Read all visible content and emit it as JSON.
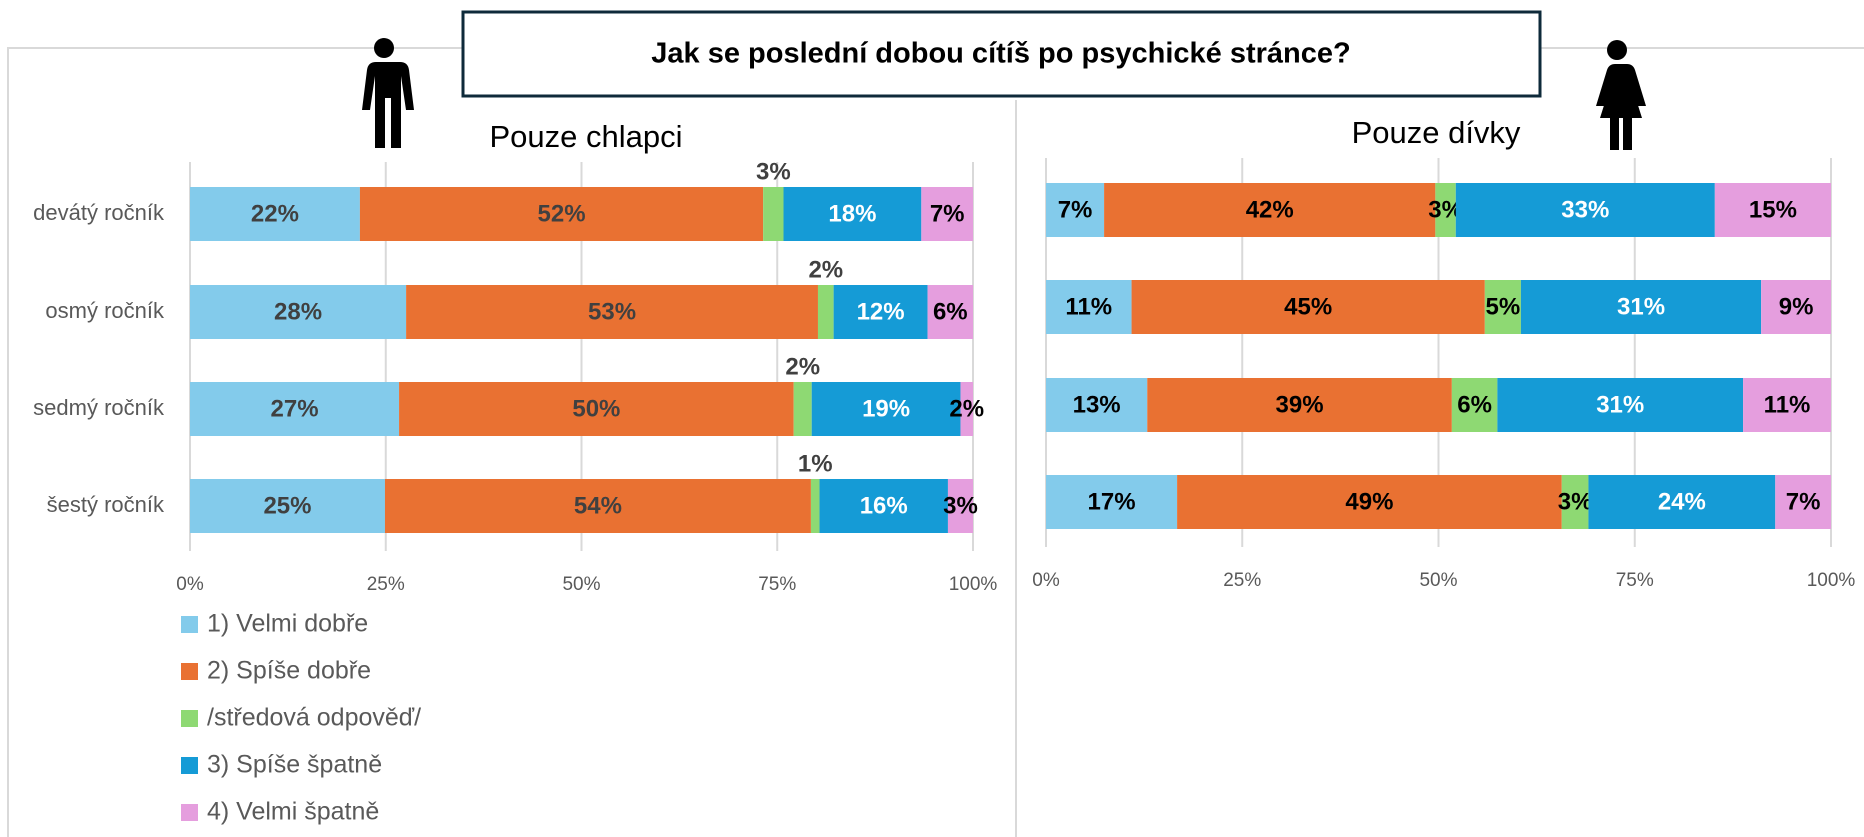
{
  "title": "Jak se poslední dobou cítíš po psychické stránce?",
  "chart_data": [
    {
      "type": "bar",
      "orientation": "horizontal",
      "stacked": true,
      "title": "Pouze chlapci",
      "categories": [
        "devátý ročník",
        "osmý ročník",
        "sedmý ročník",
        "šestý ročník"
      ],
      "series": [
        {
          "name": "1) Velmi dobře",
          "color": "#83cbeb",
          "values": [
            21.7,
            27.6,
            26.7,
            24.9
          ],
          "value_labels": [
            "22%",
            "28%",
            "27%",
            "25%"
          ]
        },
        {
          "name": "2) Spíše dobře",
          "color": "#e97132",
          "values": [
            51.5,
            52.6,
            50.4,
            54.4
          ],
          "value_labels": [
            "52%",
            "53%",
            "50%",
            "54%"
          ]
        },
        {
          "name": "/středová odpověď/",
          "color": "#8ed973",
          "values": [
            2.6,
            2.0,
            2.3,
            1.1
          ],
          "value_labels": [
            "3%",
            "2%",
            "2%",
            "1%"
          ]
        },
        {
          "name": "3) Spíše špatně",
          "color": "#159bd6",
          "values": [
            17.6,
            12.0,
            19.0,
            16.4
          ],
          "value_labels": [
            "18%",
            "12%",
            "19%",
            "16%"
          ]
        },
        {
          "name": "4) Velmi špatně",
          "color": "#e59ede",
          "values": [
            6.6,
            5.8,
            1.6,
            3.2
          ],
          "value_labels": [
            "7%",
            "6%",
            "2%",
            "3%"
          ]
        }
      ],
      "xlim": [
        0,
        100
      ],
      "xticks": [
        {
          "value": 0,
          "label": "0%"
        },
        {
          "value": 25,
          "label": "25%"
        },
        {
          "value": 50,
          "label": "50%"
        },
        {
          "value": 75,
          "label": "75%"
        },
        {
          "value": 100,
          "label": "100%"
        }
      ],
      "grid": true,
      "legend": "bottom-left"
    },
    {
      "type": "bar",
      "orientation": "horizontal",
      "stacked": true,
      "title": "Pouze dívky",
      "series": [
        {
          "color": "#83cbeb",
          "values": [
            7.4,
            10.9,
            12.9,
            16.7
          ],
          "value_labels": [
            "7%",
            "11%",
            "13%",
            "17%"
          ]
        },
        {
          "color": "#e97132",
          "values": [
            42.2,
            45.0,
            38.8,
            49.0
          ],
          "value_labels": [
            "42%",
            "45%",
            "39%",
            "49%"
          ]
        },
        {
          "color": "#8ed973",
          "values": [
            2.6,
            4.6,
            5.8,
            3.4
          ],
          "value_labels": [
            "3%",
            "5%",
            "6%",
            "3%"
          ]
        },
        {
          "color": "#159bd6",
          "values": [
            33.0,
            30.6,
            31.3,
            23.8
          ],
          "value_labels": [
            "33%",
            "31%",
            "31%",
            "24%"
          ]
        },
        {
          "color": "#e59ede",
          "values": [
            14.8,
            8.9,
            11.2,
            7.1
          ],
          "value_labels": [
            "15%",
            "9%",
            "11%",
            "7%"
          ]
        }
      ],
      "xlim": [
        0,
        100
      ],
      "xticks": [
        {
          "value": 0,
          "label": "0%"
        },
        {
          "value": 25,
          "label": "25%"
        },
        {
          "value": 50,
          "label": "50%"
        },
        {
          "value": 75,
          "label": "75%"
        },
        {
          "value": 100,
          "label": "100%"
        }
      ],
      "grid": true
    }
  ]
}
